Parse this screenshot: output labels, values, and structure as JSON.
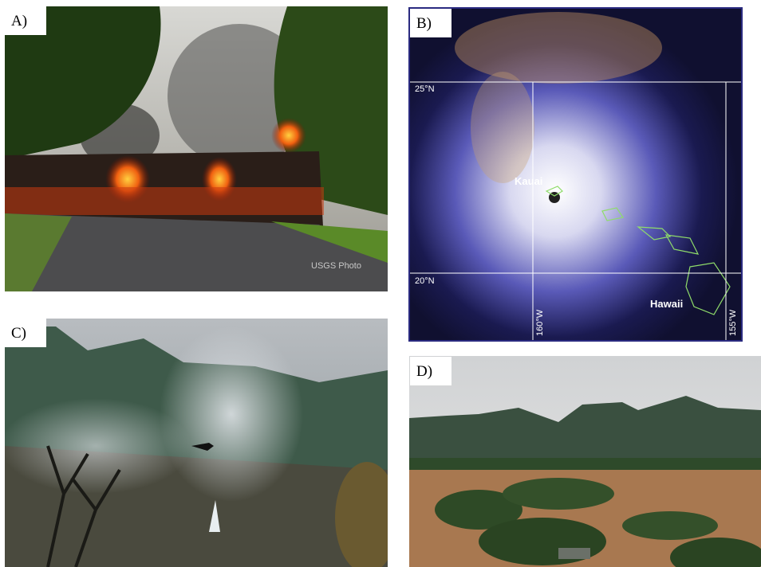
{
  "panels": [
    {
      "label": "A)",
      "credit": "USGS Photo"
    },
    {
      "label": "B)",
      "map": {
        "latitudes": [
          "25°N",
          "20°N"
        ],
        "longitudes": [
          "160°W",
          "155°W"
        ],
        "places": [
          "Kauai",
          "Hawaii"
        ]
      }
    },
    {
      "label": "C)"
    },
    {
      "label": "D)"
    }
  ]
}
